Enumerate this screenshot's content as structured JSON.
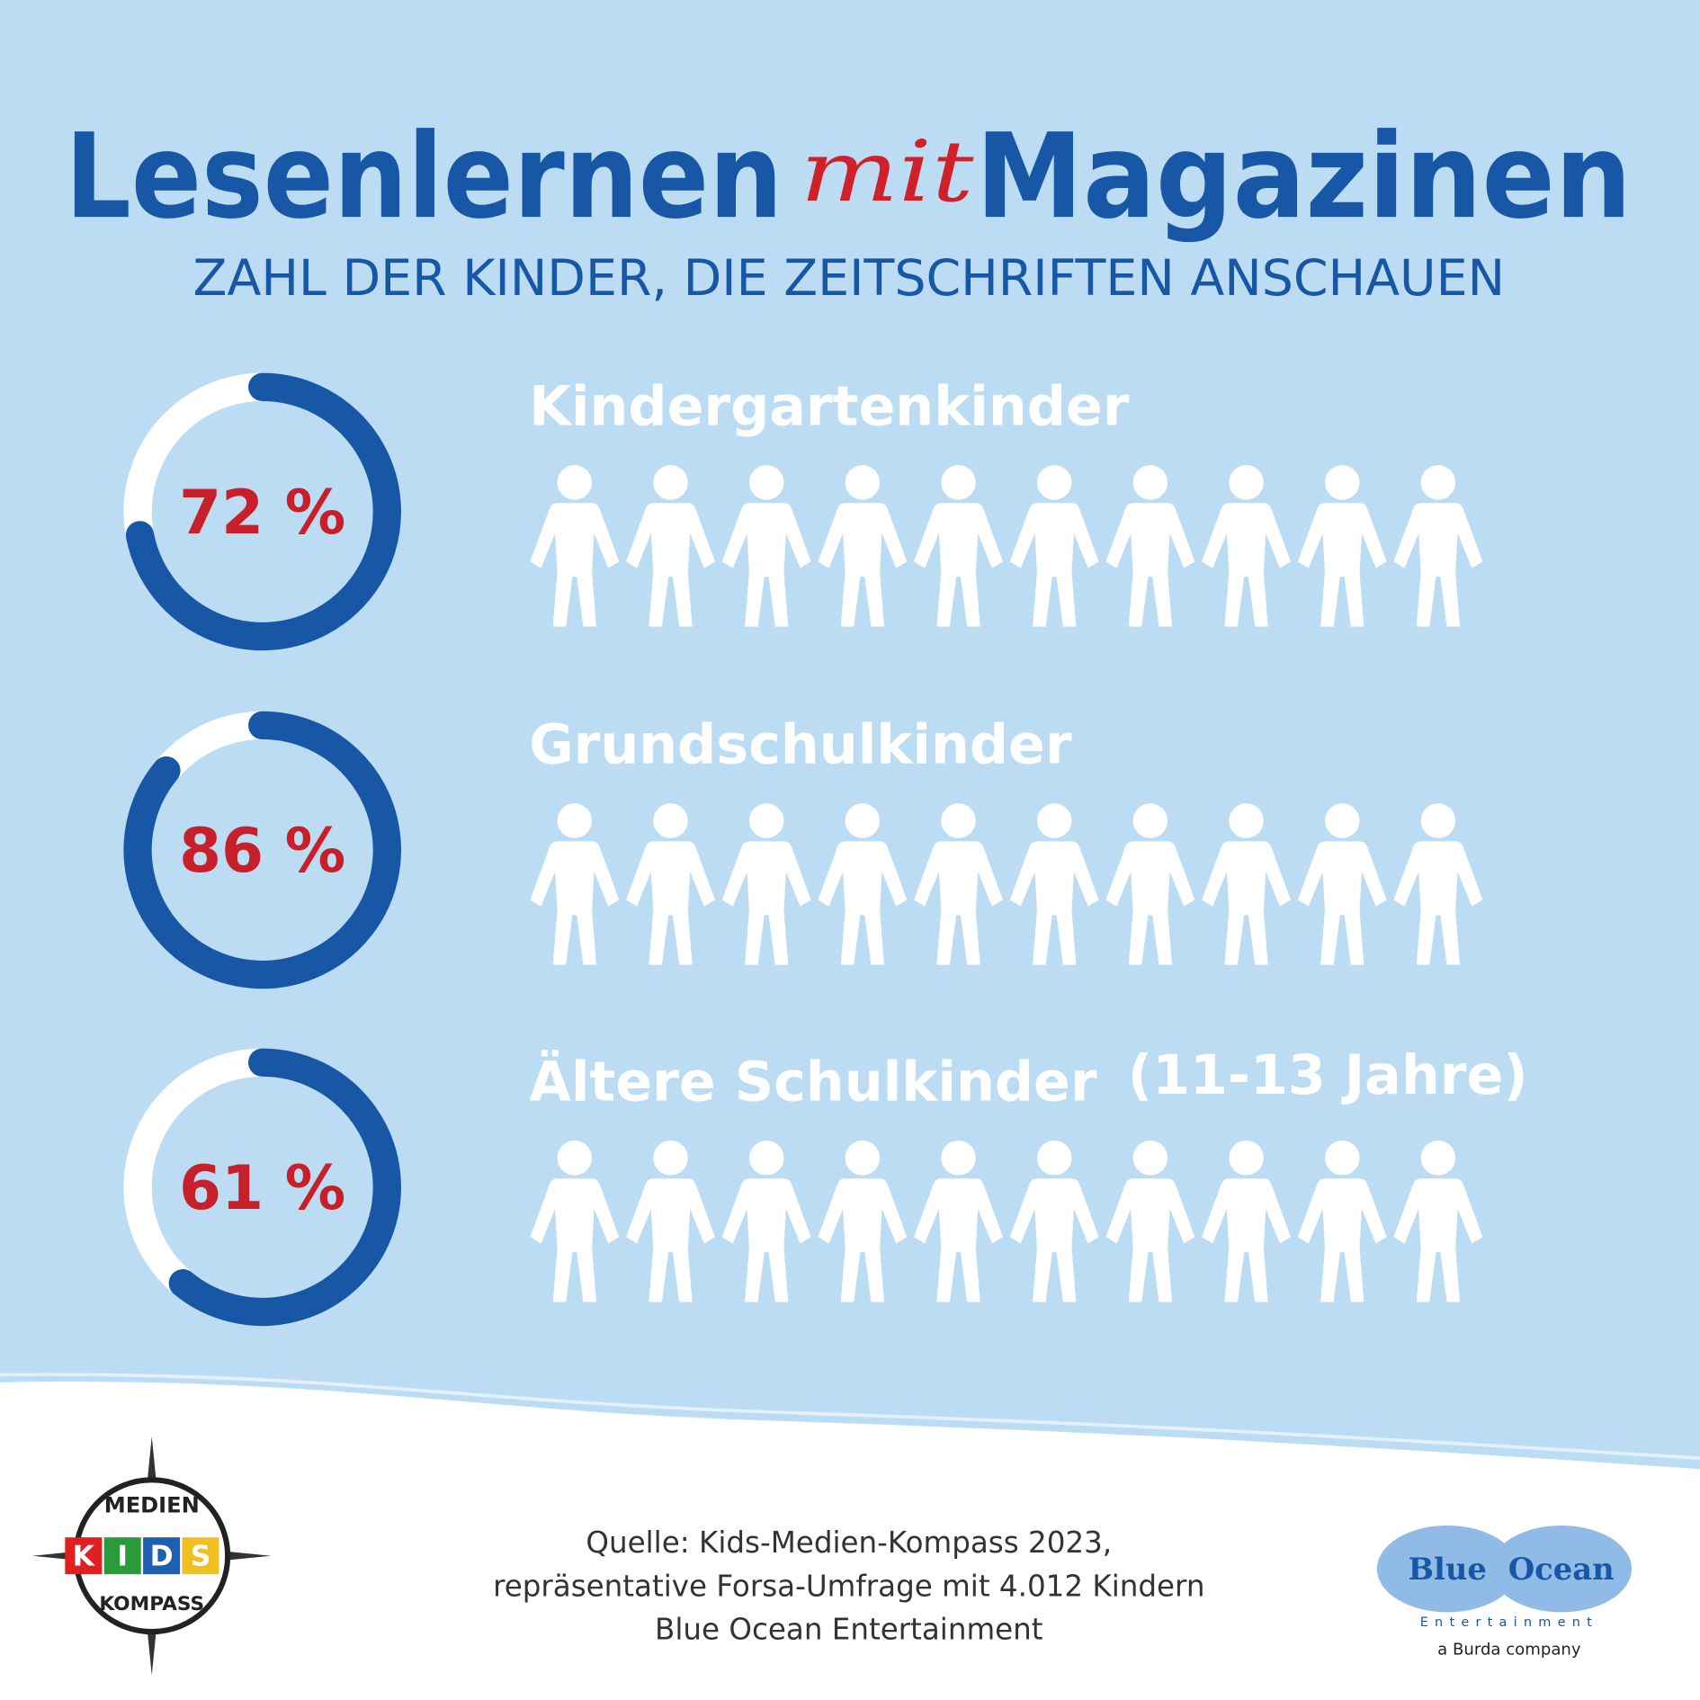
{
  "title": {
    "part1": "Lesenlernen",
    "part2": "mit",
    "part3": "Magazinen"
  },
  "subtitle": "ZAHL DER KINDER, DIE ZEITSCHRIFTEN ANSCHAUEN",
  "chart_data": [
    {
      "type": "donut",
      "title": "Kindergartenkinder",
      "values": [
        72
      ],
      "value_labels": [
        "72 %"
      ],
      "color": "#1757a6"
    },
    {
      "type": "donut",
      "title": "Grundschulkinder",
      "values": [
        86
      ],
      "value_labels": [
        "86 %"
      ],
      "color": "#1757a6"
    },
    {
      "type": "donut",
      "title": "Ältere Schulkinder",
      "note": "(11-13 Jahre)",
      "values": [
        61
      ],
      "value_labels": [
        "61 %"
      ],
      "color": "#1757a6"
    }
  ],
  "footer": {
    "lines": [
      "Quelle: Kids-Medien-Kompass 2023,",
      "repräsentative Forsa-Umfrage mit 4.012 Kindern",
      "Blue Ocean Entertainment"
    ]
  },
  "logos": {
    "left": {
      "top": "MEDIEN",
      "middle": [
        "K",
        "I",
        "D",
        "S"
      ],
      "bottom": "KOMPASS"
    },
    "right": {
      "name1": "Blue",
      "name2": "Ocean",
      "tag": "Entertainment",
      "burda": "a Burda company"
    }
  }
}
